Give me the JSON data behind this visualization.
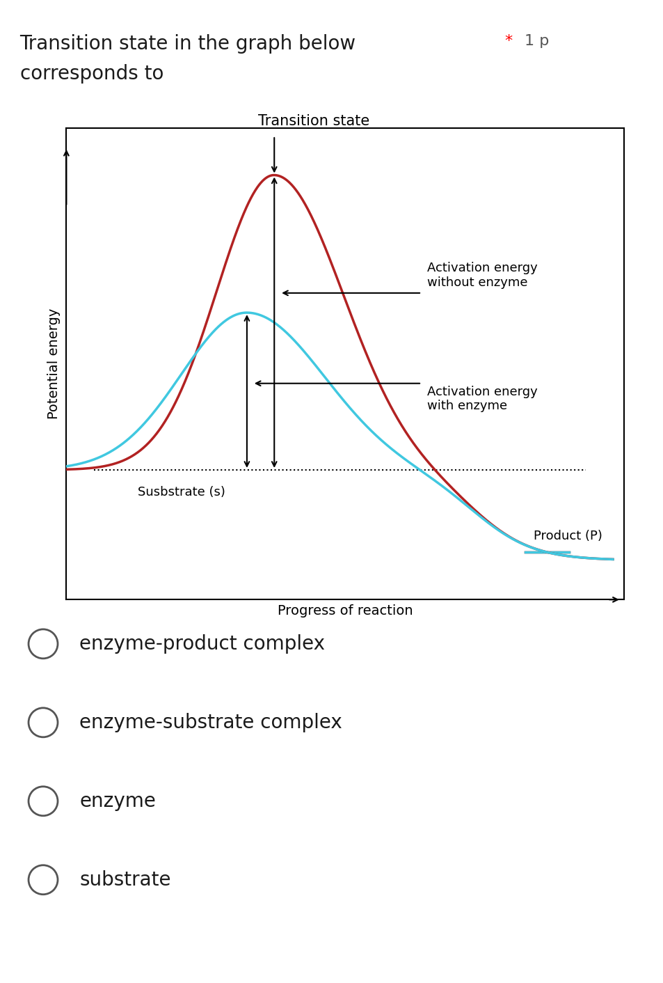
{
  "title_line1": "Transition state in the graph below",
  "title_line2": "corresponds to",
  "star_text": "* 1 p",
  "graph_title": "Transition state",
  "ylabel": "Potential energy",
  "xlabel": "Progress of reaction",
  "substrate_label": "Susbstrate (s)",
  "product_label": "Product (P)",
  "label_without_enzyme": "Activation energy\nwithout enzyme",
  "label_with_enzyme": "Activation energy\nwith enzyme",
  "red_color": "#b22222",
  "blue_color": "#40c8e0",
  "background_color": "#ffffff",
  "options": [
    "enzyme-product complex",
    "enzyme-substrate complex",
    "enzyme",
    "substrate"
  ],
  "title_fontsize": 20,
  "graph_label_fontsize": 13,
  "option_fontsize": 20
}
